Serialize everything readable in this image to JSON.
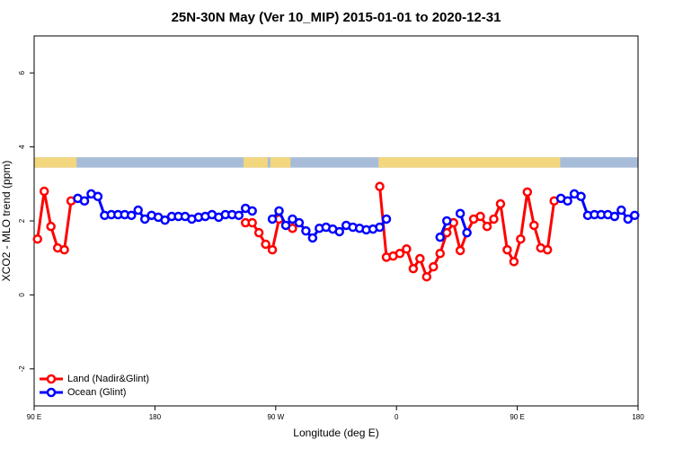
{
  "chart_data": {
    "type": "line",
    "title": "25N-30N May (Ver 10_MIP)   2015-01-01 to 2020-12-31",
    "x_label": "Longitude (deg E)",
    "y_label": "XCO2 - MLO trend (ppm)",
    "xlim": [
      90,
      540
    ],
    "ylim": [
      -3,
      7
    ],
    "xticks": [
      {
        "value": 90,
        "label": "90 E"
      },
      180,
      {
        "value": 270,
        "label": "90 W"
      },
      {
        "value": 360,
        "label": "0"
      },
      {
        "value": 450,
        "label": "90 E"
      },
      {
        "value": 540,
        "label": "180"
      }
    ],
    "yticks": [
      -2,
      0,
      2,
      4,
      6
    ],
    "legend": "bottomleft",
    "surface_mask": {
      "band": [
        3.44,
        3.72
      ],
      "ocean_color": "#a7bcd8",
      "land_color": "#f3d77e",
      "land_spans": [
        [
          90,
          121.6
        ],
        [
          246,
          264
        ],
        [
          266,
          281
        ],
        [
          346.6,
          482
        ]
      ]
    },
    "x": [
      92.5,
      97.5,
      102.5,
      107.5,
      112.5,
      117.5,
      122.5,
      127.5,
      132.5,
      137.5,
      142.5,
      147.5,
      152.5,
      157.5,
      162.5,
      167.5,
      172.5,
      177.5,
      182.5,
      187.5,
      192.5,
      197.5,
      202.5,
      207.5,
      212.5,
      217.5,
      222.5,
      227.5,
      232.5,
      237.5,
      242.5,
      247.5,
      252.5,
      257.5,
      262.5,
      267.5,
      272.5,
      277.5,
      282.5,
      287.5,
      292.5,
      297.5,
      302.5,
      307.5,
      312.5,
      317.5,
      322.5,
      327.5,
      332.5,
      337.5,
      342.5,
      347.5,
      352.5,
      357.5,
      362.5,
      367.5,
      372.5,
      377.5,
      382.5,
      387.5,
      392.5,
      397.5,
      402.5,
      407.5,
      412.5,
      417.5,
      422.5,
      427.5,
      432.5,
      437.5,
      442.5,
      447.5,
      452.5,
      457.5,
      462.5,
      467.5,
      472.5,
      477.5,
      482.5,
      487.5,
      492.5,
      497.5,
      502.5,
      507.5,
      512.5,
      517.5,
      522.5,
      527.5,
      532.5,
      537.5
    ],
    "series": [
      {
        "name": "Land (Nadir&Glint)",
        "color": "#ff0000",
        "values": [
          1.51,
          2.8,
          1.85,
          1.27,
          1.22,
          2.54,
          null,
          null,
          null,
          null,
          null,
          null,
          null,
          null,
          null,
          null,
          null,
          null,
          null,
          null,
          null,
          null,
          null,
          null,
          null,
          null,
          null,
          null,
          null,
          null,
          null,
          1.95,
          1.95,
          1.68,
          1.37,
          1.22,
          2.05,
          null,
          1.8,
          null,
          null,
          null,
          null,
          null,
          null,
          null,
          null,
          null,
          null,
          null,
          null,
          2.93,
          1.02,
          1.05,
          1.12,
          1.24,
          0.71,
          0.98,
          0.49,
          0.76,
          1.12,
          1.68,
          1.95,
          1.2,
          1.68,
          2.05,
          2.12,
          1.85,
          2.05,
          2.46,
          1.22,
          0.9,
          1.51,
          2.78,
          1.88,
          1.27,
          1.22,
          2.54,
          null,
          null,
          null,
          null,
          null,
          null,
          null,
          null,
          null,
          null,
          null,
          null
        ]
      },
      {
        "name": "Ocean (Glint)",
        "color": "#0000ff",
        "values": [
          null,
          null,
          null,
          null,
          null,
          null,
          2.61,
          2.54,
          2.73,
          2.66,
          2.15,
          2.17,
          2.17,
          2.17,
          2.15,
          2.29,
          2.05,
          2.15,
          2.1,
          2.02,
          2.12,
          2.12,
          2.12,
          2.05,
          2.1,
          2.12,
          2.17,
          2.1,
          2.17,
          2.17,
          2.15,
          2.34,
          2.27,
          null,
          null,
          2.05,
          2.27,
          1.88,
          2.05,
          1.95,
          1.73,
          1.54,
          1.8,
          1.83,
          1.78,
          1.71,
          1.88,
          1.83,
          1.8,
          1.76,
          1.78,
          1.83,
          2.05,
          null,
          null,
          null,
          null,
          null,
          null,
          null,
          1.56,
          2.0,
          null,
          2.2,
          1.68,
          null,
          null,
          null,
          null,
          null,
          null,
          null,
          null,
          null,
          null,
          null,
          null,
          null,
          2.61,
          2.54,
          2.73,
          2.66,
          2.15,
          2.17,
          2.17,
          2.17,
          2.12,
          2.29,
          2.05,
          2.15
        ]
      }
    ]
  }
}
